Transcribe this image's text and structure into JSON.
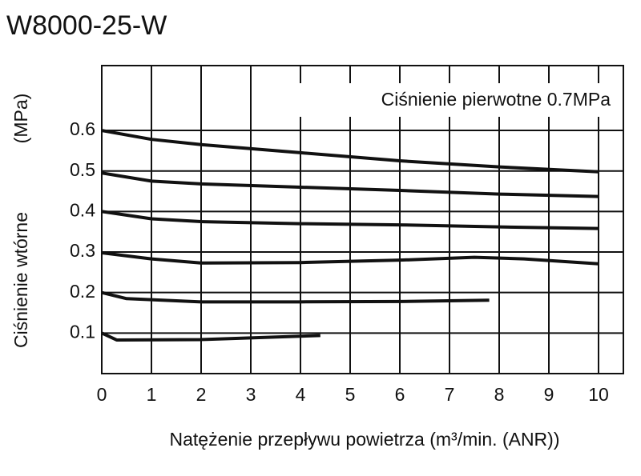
{
  "chart_data": {
    "type": "line",
    "title": "W8000-25-W",
    "x_label": "Natężenie przepływu powietrza (m³/min. (ANR))",
    "y_label": "Ciśnienie wtórne",
    "y_unit": "(MPa)",
    "annotation": "Ciśnienie pierwotne 0.7MPa",
    "xlim": [
      0,
      10.5
    ],
    "xticks": [
      0,
      1,
      2,
      3,
      4,
      5,
      6,
      7,
      8,
      9,
      10
    ],
    "ylim": [
      0,
      0.76
    ],
    "yticks": [
      0.1,
      0.2,
      0.3,
      0.4,
      0.5,
      0.6
    ],
    "grid": true,
    "color": "#111111",
    "series": [
      {
        "x": [
          0,
          1,
          2,
          4,
          6,
          8,
          10
        ],
        "values": [
          0.6,
          0.578,
          0.565,
          0.545,
          0.525,
          0.51,
          0.498
        ]
      },
      {
        "x": [
          0,
          1,
          2,
          4,
          6,
          8,
          10
        ],
        "values": [
          0.495,
          0.475,
          0.468,
          0.46,
          0.452,
          0.443,
          0.437
        ]
      },
      {
        "x": [
          0,
          1,
          2,
          4,
          6,
          8,
          10
        ],
        "values": [
          0.4,
          0.382,
          0.375,
          0.37,
          0.367,
          0.362,
          0.358
        ]
      },
      {
        "x": [
          0,
          1,
          2,
          4,
          6,
          7.5,
          8.5,
          10
        ],
        "values": [
          0.298,
          0.283,
          0.273,
          0.274,
          0.28,
          0.287,
          0.283,
          0.271
        ]
      },
      {
        "x": [
          0,
          0.5,
          2,
          4,
          6,
          7.8
        ],
        "values": [
          0.2,
          0.185,
          0.177,
          0.177,
          0.178,
          0.181
        ]
      },
      {
        "x": [
          0,
          0.3,
          2,
          4.4
        ],
        "values": [
          0.1,
          0.083,
          0.084,
          0.094
        ]
      }
    ]
  }
}
